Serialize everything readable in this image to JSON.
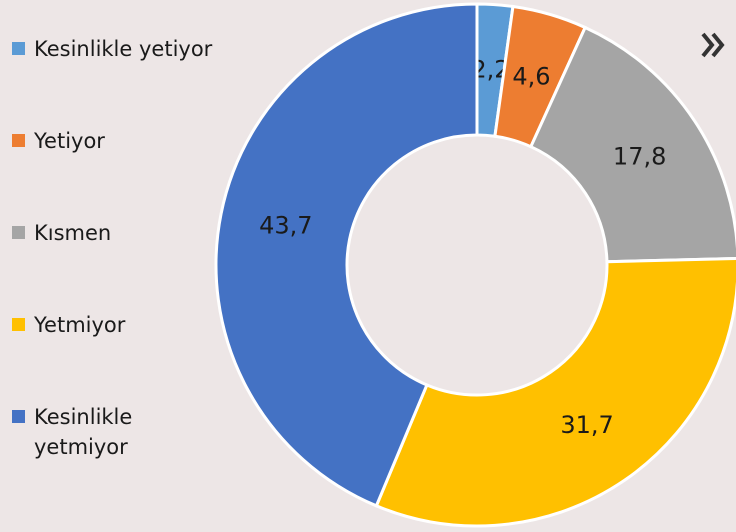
{
  "chart_data": {
    "type": "donut",
    "categories": [
      "Kesinlikle yetiyor",
      "Yetiyor",
      "Kısmen",
      "Yetmiyor",
      "Kesinlikle yetmiyor"
    ],
    "values": [
      2.2,
      4.6,
      17.8,
      31.7,
      43.7
    ],
    "value_labels": [
      "2,2",
      "4,6",
      "17,8",
      "31,7",
      "43,7"
    ],
    "colors": [
      "#5b9bd5",
      "#ed7d31",
      "#a5a5a5",
      "#ffc000",
      "#4472c4"
    ],
    "legend": "left"
  }
}
